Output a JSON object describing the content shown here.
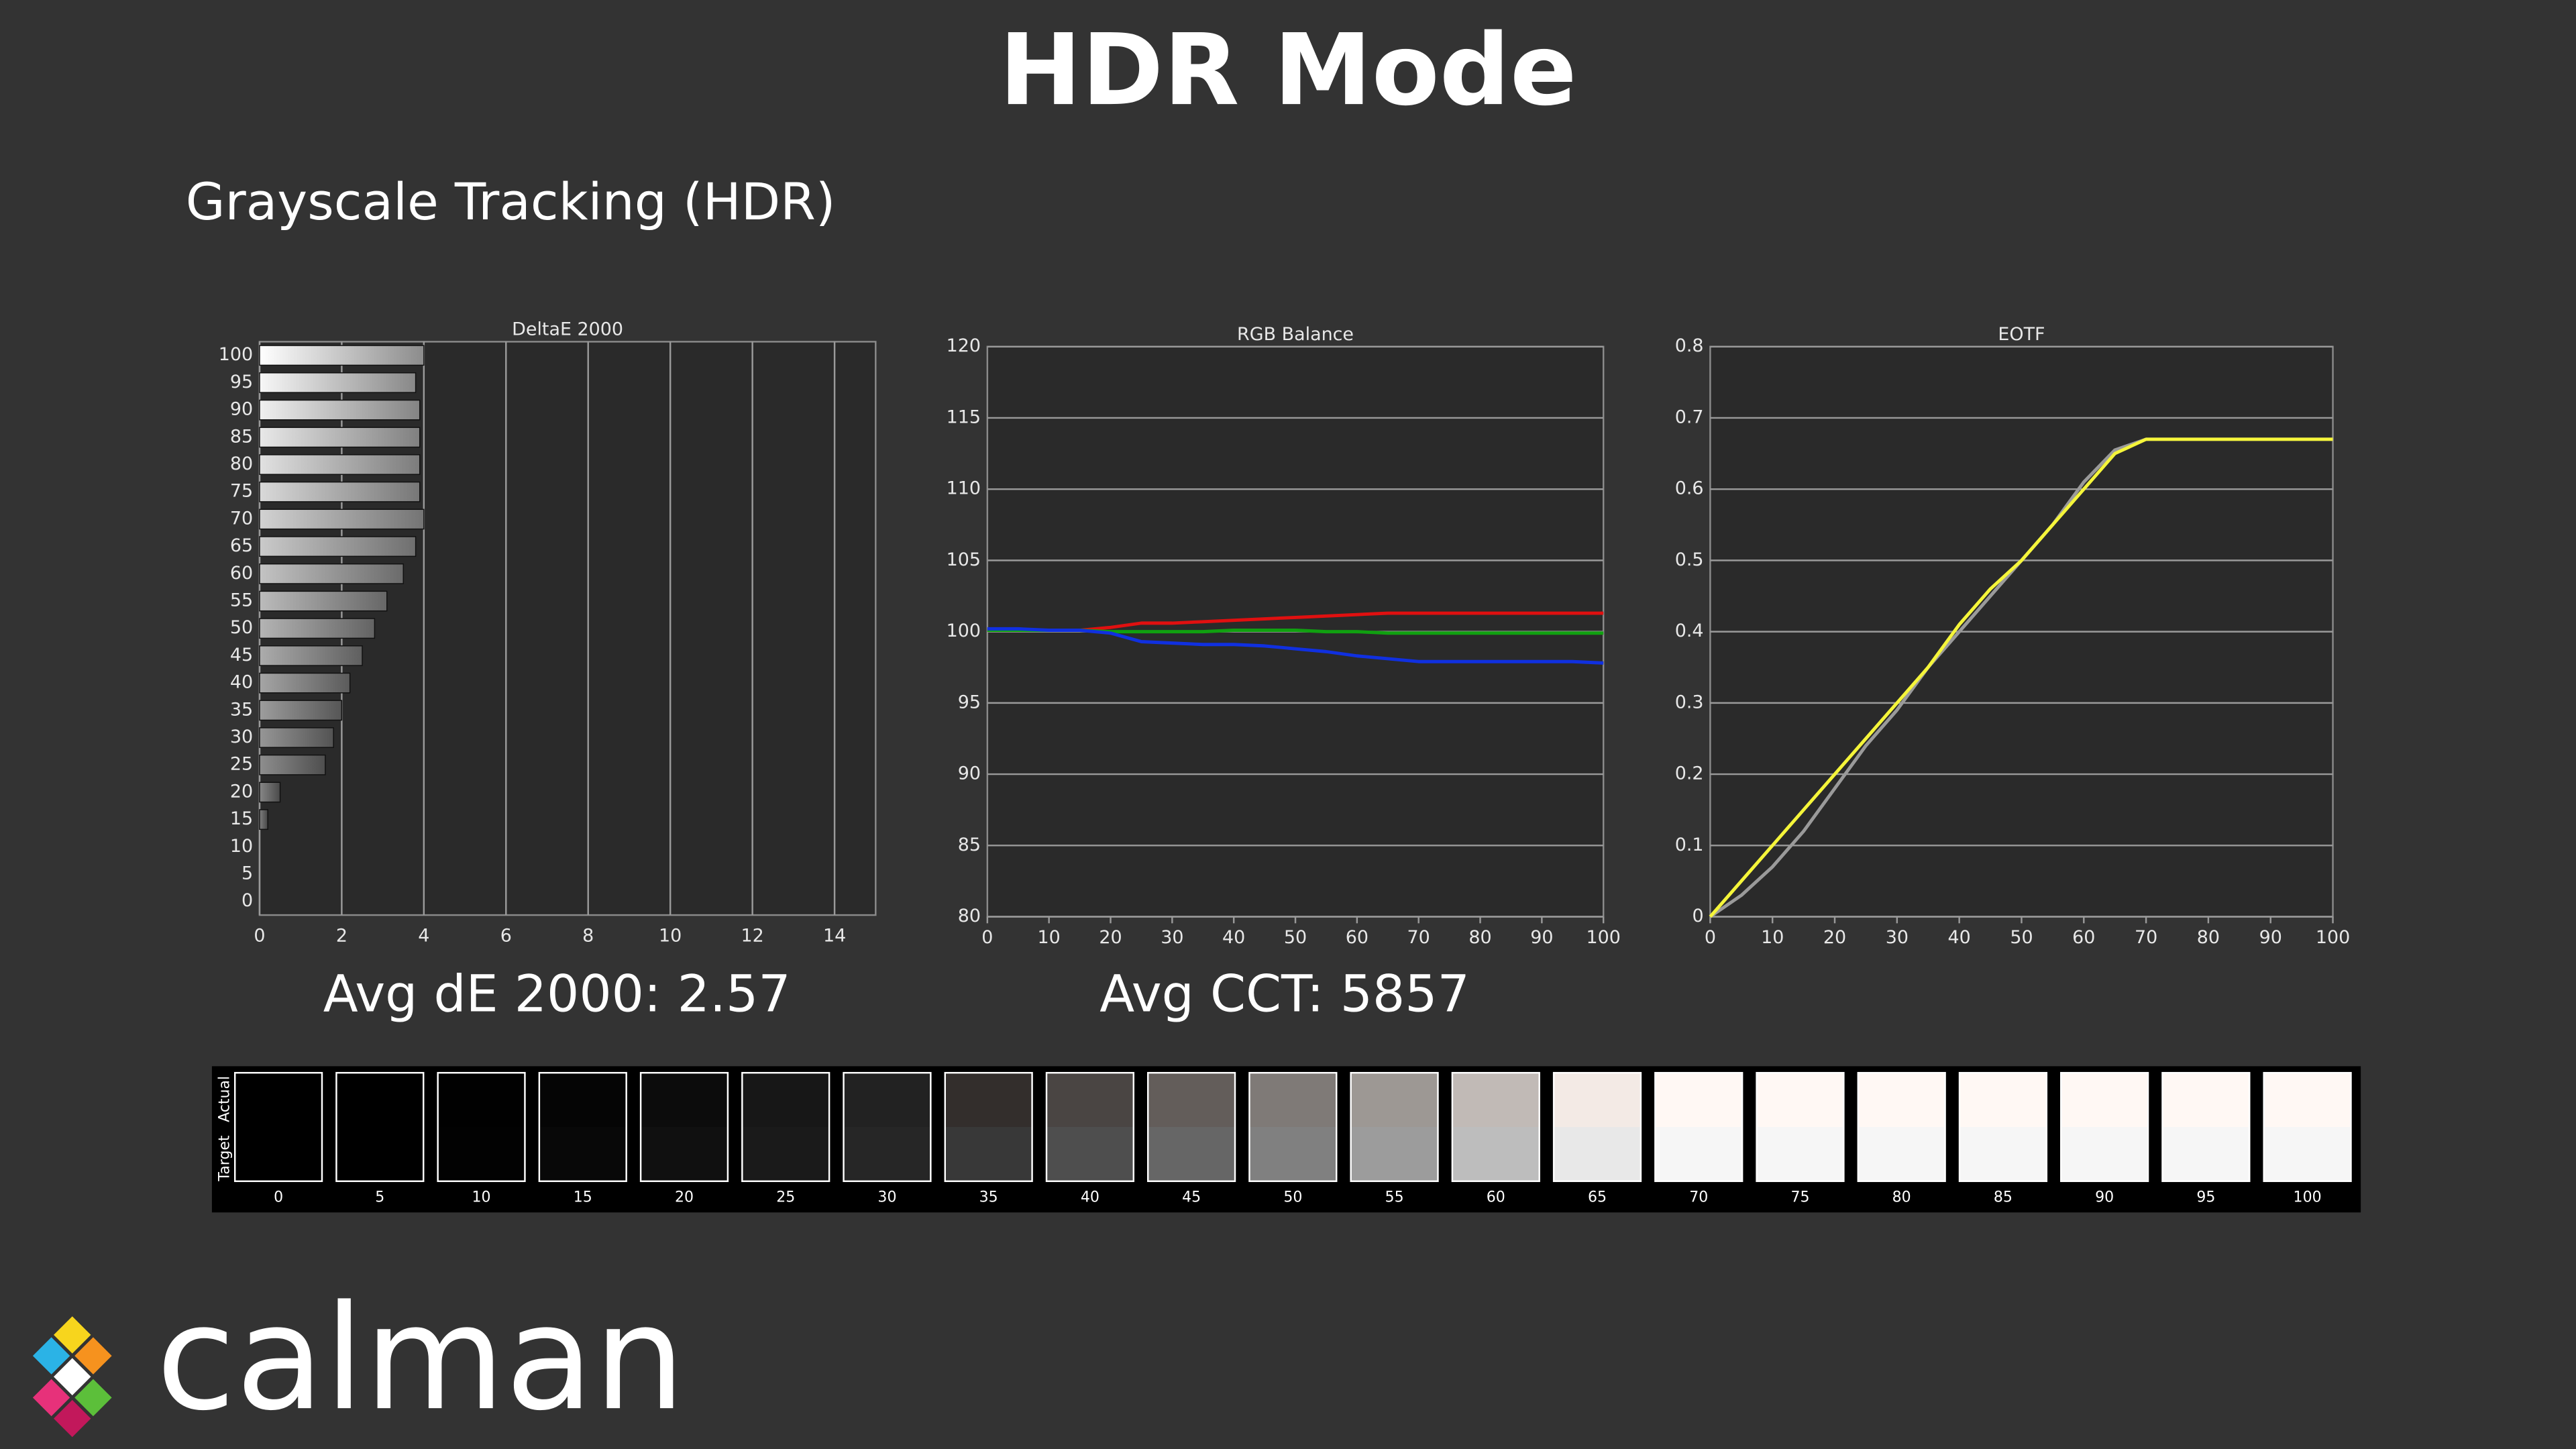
{
  "header": {
    "title": "HDR Mode",
    "subtitle": "Grayscale Tracking (HDR)"
  },
  "chart_data": [
    {
      "type": "bar",
      "orientation": "horizontal",
      "title": "DeltaE 2000",
      "categories": [
        "100",
        "95",
        "90",
        "85",
        "80",
        "75",
        "70",
        "65",
        "60",
        "55",
        "50",
        "45",
        "40",
        "35",
        "30",
        "25",
        "20",
        "15",
        "10",
        "5",
        "0"
      ],
      "values": [
        4.0,
        3.8,
        3.9,
        3.9,
        3.9,
        3.9,
        4.0,
        3.8,
        3.5,
        3.1,
        2.8,
        2.5,
        2.2,
        2.0,
        1.8,
        1.6,
        0.5,
        0.2,
        0,
        0,
        0
      ],
      "xlim": [
        0,
        15
      ],
      "xticks": [
        0,
        2,
        4,
        6,
        8,
        10,
        12,
        14
      ],
      "grid": "x"
    },
    {
      "type": "line",
      "title": "RGB Balance",
      "x": [
        0,
        5,
        10,
        15,
        20,
        25,
        30,
        35,
        40,
        45,
        50,
        55,
        60,
        65,
        70,
        75,
        80,
        85,
        90,
        95,
        100
      ],
      "series": [
        {
          "color": "#e01010",
          "values": [
            100.1,
            100.1,
            100.1,
            100.1,
            100.3,
            100.6,
            100.6,
            100.7,
            100.8,
            100.9,
            101.0,
            101.1,
            101.2,
            101.3,
            101.3,
            101.3,
            101.3,
            101.3,
            101.3,
            101.3,
            101.3
          ]
        },
        {
          "color": "#10a010",
          "values": [
            100.1,
            100.1,
            100.1,
            100.1,
            100.0,
            100.0,
            100.0,
            100.0,
            100.1,
            100.1,
            100.1,
            100.0,
            100.0,
            99.9,
            99.9,
            99.9,
            99.9,
            99.9,
            99.9,
            99.9,
            99.9
          ]
        },
        {
          "color": "#1030e0",
          "values": [
            100.2,
            100.2,
            100.1,
            100.1,
            99.9,
            99.3,
            99.2,
            99.1,
            99.1,
            99.0,
            98.8,
            98.6,
            98.3,
            98.1,
            97.9,
            97.9,
            97.9,
            97.9,
            97.9,
            97.9,
            97.8
          ]
        }
      ],
      "xlim": [
        0,
        100
      ],
      "xticks": [
        0,
        10,
        20,
        30,
        40,
        50,
        60,
        70,
        80,
        90,
        100
      ],
      "ylim": [
        80,
        120
      ],
      "yticks": [
        80,
        85,
        90,
        95,
        100,
        105,
        110,
        115,
        120
      ],
      "grid": "y"
    },
    {
      "type": "line",
      "title": "EOTF",
      "x": [
        0,
        5,
        10,
        15,
        20,
        25,
        30,
        35,
        40,
        45,
        50,
        55,
        60,
        65,
        70,
        75,
        80,
        85,
        90,
        95,
        100
      ],
      "series": [
        {
          "color": "#9a9a9a",
          "values": [
            0,
            0.03,
            0.07,
            0.12,
            0.18,
            0.24,
            0.29,
            0.35,
            0.4,
            0.45,
            0.5,
            0.55,
            0.61,
            0.655,
            0.67,
            0.67,
            0.67,
            0.67,
            0.67,
            0.67,
            0.67
          ]
        },
        {
          "color": "#f5f53a",
          "values": [
            0,
            0.05,
            0.1,
            0.15,
            0.2,
            0.25,
            0.3,
            0.35,
            0.41,
            0.46,
            0.5,
            0.55,
            0.6,
            0.65,
            0.67,
            0.67,
            0.67,
            0.67,
            0.67,
            0.67,
            0.67
          ]
        }
      ],
      "xlim": [
        0,
        100
      ],
      "xticks": [
        0,
        10,
        20,
        30,
        40,
        50,
        60,
        70,
        80,
        90,
        100
      ],
      "ylim": [
        0,
        0.8
      ],
      "yticks": [
        0,
        0.1,
        0.2,
        0.3,
        0.4,
        0.5,
        0.6,
        0.7,
        0.8
      ],
      "grid": "y"
    }
  ],
  "summary": [
    "Avg dE 2000: 2.57",
    "Avg CCT: 5857"
  ],
  "swatches": {
    "actual_label": "Actual",
    "target_label": "Target",
    "levels": [
      "0",
      "5",
      "10",
      "15",
      "20",
      "25",
      "30",
      "35",
      "40",
      "45",
      "50",
      "55",
      "60",
      "65",
      "70",
      "75",
      "80",
      "85",
      "90",
      "95",
      "100"
    ],
    "actual": [
      "#000000",
      "#000000",
      "#010101",
      "#050505",
      "#0c0c0c",
      "#171717",
      "#222222",
      "#332e2c",
      "#4a4543",
      "#635d5a",
      "#7f7a77",
      "#9d9894",
      "#c1bab6",
      "#f3eae5",
      "#fff8f4",
      "#fff8f4",
      "#fff8f4",
      "#fff8f4",
      "#fff8f4",
      "#fff8f4",
      "#fff8f4"
    ],
    "target": [
      "#000000",
      "#000000",
      "#020202",
      "#080808",
      "#101010",
      "#1a1a1a",
      "#262626",
      "#383838",
      "#4e4e4e",
      "#666666",
      "#808080",
      "#9c9c9c",
      "#bdbdbd",
      "#e8e8e8",
      "#f6f6f6",
      "#f6f6f6",
      "#f6f6f6",
      "#f6f6f6",
      "#f6f6f6",
      "#f6f6f6",
      "#f6f6f6"
    ]
  },
  "logo": {
    "text": "calman"
  }
}
